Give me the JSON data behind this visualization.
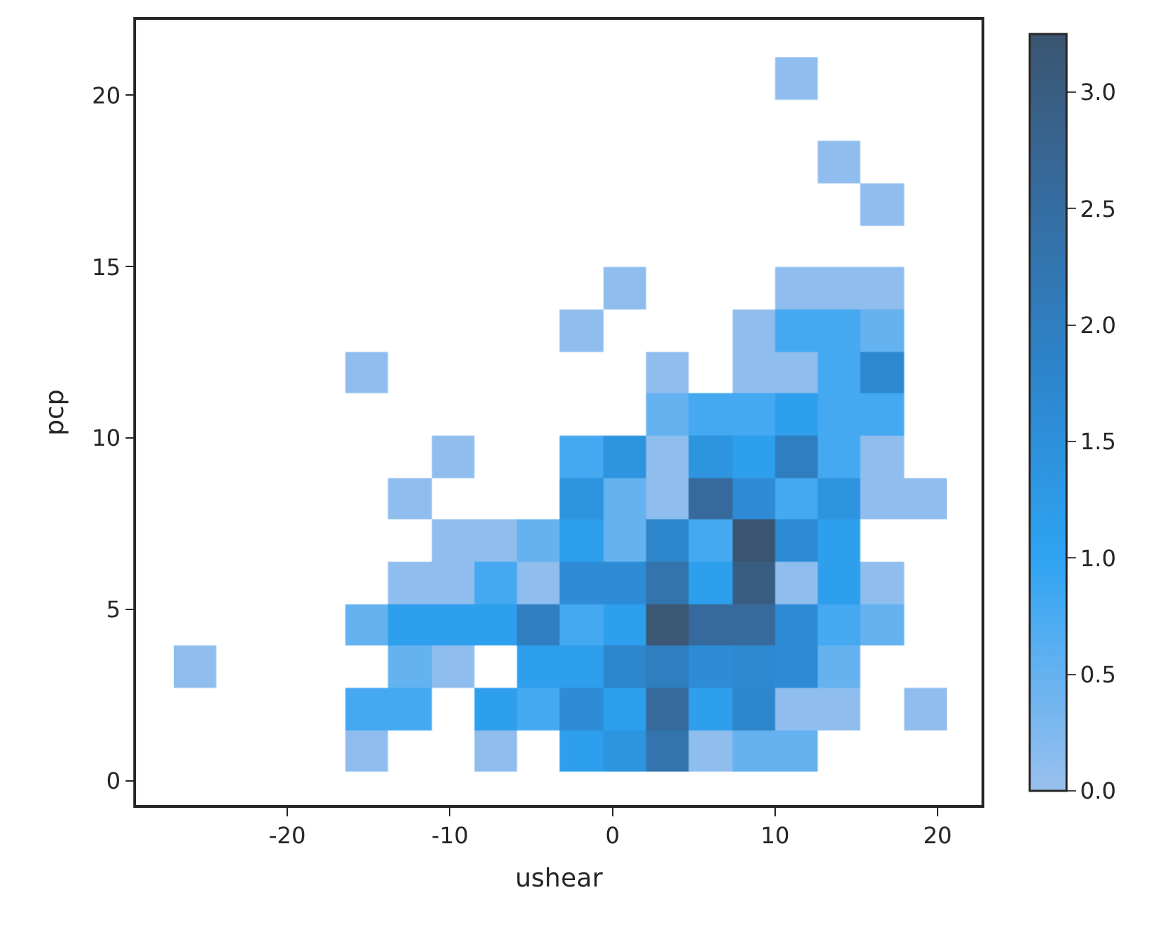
{
  "chart_data": {
    "type": "heatmap",
    "xlabel": "ushear",
    "ylabel": "pcp",
    "x": [
      -25.67,
      -23.03,
      -20.39,
      -17.75,
      -15.1,
      -12.46,
      -9.82,
      -7.18,
      -4.54,
      -1.9,
      0.75,
      3.39,
      6.03,
      8.67,
      11.31,
      13.96,
      16.6,
      19.24
    ],
    "y": [
      20.5,
      18.05,
      16.82,
      14.37,
      13.14,
      11.91,
      10.69,
      9.46,
      8.23,
      7.01,
      5.78,
      4.55,
      3.33,
      2.1,
      0.87
    ],
    "cells": [
      [
        null,
        null,
        null,
        null,
        null,
        null,
        null,
        null,
        null,
        null,
        null,
        null,
        null,
        null,
        0.1,
        null,
        null,
        null
      ],
      [
        null,
        null,
        null,
        null,
        null,
        null,
        null,
        null,
        null,
        null,
        null,
        null,
        null,
        null,
        null,
        0.1,
        null,
        null
      ],
      [
        null,
        null,
        null,
        null,
        null,
        null,
        null,
        null,
        null,
        null,
        null,
        null,
        null,
        null,
        null,
        null,
        0.1,
        null
      ],
      [
        null,
        null,
        null,
        null,
        null,
        null,
        null,
        null,
        null,
        null,
        0.1,
        null,
        null,
        null,
        0.1,
        0.1,
        0.1,
        null
      ],
      [
        null,
        null,
        null,
        null,
        null,
        null,
        null,
        null,
        null,
        0.1,
        null,
        null,
        null,
        0.1,
        0.8,
        0.8,
        0.5,
        null
      ],
      [
        null,
        null,
        null,
        null,
        0.1,
        null,
        null,
        null,
        null,
        null,
        null,
        0.1,
        null,
        0.1,
        0.1,
        0.8,
        1.7,
        null
      ],
      [
        null,
        null,
        null,
        null,
        null,
        null,
        null,
        null,
        null,
        null,
        null,
        0.5,
        0.8,
        0.8,
        1.1,
        0.8,
        0.8,
        null
      ],
      [
        null,
        null,
        null,
        null,
        null,
        null,
        0.1,
        null,
        null,
        0.8,
        1.4,
        0.1,
        1.4,
        1.1,
        2.0,
        0.8,
        0.1,
        null
      ],
      [
        null,
        null,
        null,
        null,
        null,
        0.1,
        null,
        null,
        null,
        1.4,
        0.5,
        0.1,
        2.6,
        1.6,
        0.8,
        1.4,
        0.1,
        0.1
      ],
      [
        null,
        null,
        null,
        null,
        null,
        null,
        0.1,
        0.1,
        0.5,
        1.1,
        0.5,
        1.8,
        0.8,
        3.25,
        1.6,
        1.1,
        null,
        null
      ],
      [
        null,
        null,
        null,
        null,
        null,
        0.1,
        0.1,
        0.8,
        0.1,
        1.6,
        1.6,
        2.3,
        1.1,
        3.0,
        0.1,
        1.1,
        0.1,
        null
      ],
      [
        null,
        null,
        null,
        null,
        0.5,
        1.1,
        1.1,
        1.1,
        2.0,
        0.8,
        1.1,
        3.2,
        2.6,
        2.6,
        1.6,
        0.8,
        0.5,
        null
      ],
      [
        0.1,
        null,
        null,
        null,
        null,
        0.5,
        0.1,
        null,
        1.1,
        1.1,
        1.8,
        2.0,
        1.6,
        1.7,
        1.6,
        0.5,
        null,
        null
      ],
      [
        null,
        null,
        null,
        null,
        0.8,
        0.8,
        null,
        1.1,
        0.8,
        1.6,
        1.1,
        2.6,
        1.1,
        1.8,
        0.1,
        0.1,
        null,
        0.1
      ],
      [
        null,
        null,
        null,
        null,
        0.1,
        null,
        null,
        0.1,
        null,
        1.1,
        1.4,
        2.3,
        0.1,
        0.5,
        0.5,
        null,
        null,
        null
      ]
    ],
    "xlim": [
      -29.3,
      22.7
    ],
    "xticks": [
      -20,
      -10,
      0,
      10,
      20
    ],
    "ylim": [
      -0.7,
      22.2
    ],
    "yticks": [
      0,
      5,
      10,
      15,
      20
    ],
    "clim": [
      0,
      3.25
    ],
    "cticks": [
      {
        "value": 0,
        "label": "0.0"
      },
      {
        "value": 0.5,
        "label": "0.5"
      },
      {
        "value": 1,
        "label": "1.0"
      },
      {
        "value": 1.5,
        "label": "1.5"
      },
      {
        "value": 2,
        "label": "2.0"
      },
      {
        "value": 2.5,
        "label": "2.5"
      },
      {
        "value": 3,
        "label": "3.0"
      }
    ]
  }
}
